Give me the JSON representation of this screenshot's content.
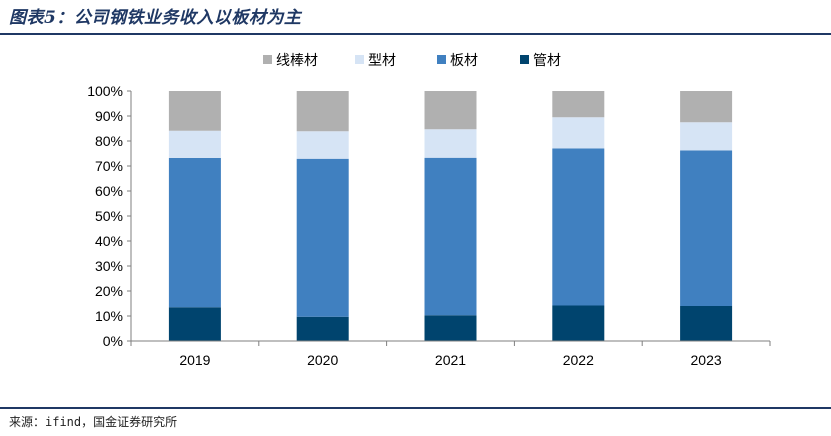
{
  "header": {
    "title": "图表5：公司钢铁业务收入以板材为主"
  },
  "footer": {
    "source": "来源：ifind，国金证券研究所"
  },
  "chart_data": {
    "type": "bar",
    "stacked": true,
    "percent": true,
    "categories": [
      "2019",
      "2020",
      "2021",
      "2022",
      "2023"
    ],
    "series": [
      {
        "name": "管材",
        "color": "#00446e",
        "values": [
          13.5,
          9.7,
          10.3,
          14.2,
          14.0
        ]
      },
      {
        "name": "板材",
        "color": "#4080c0",
        "values": [
          59.7,
          63.2,
          63.0,
          62.8,
          62.2
        ]
      },
      {
        "name": "型材",
        "color": "#d6e4f5",
        "values": [
          10.9,
          11.0,
          11.4,
          12.5,
          11.3
        ]
      },
      {
        "name": "线棒材",
        "color": "#b0b0b0",
        "values": [
          15.9,
          16.1,
          15.3,
          10.5,
          12.5
        ]
      }
    ],
    "legend_order": [
      "线棒材",
      "型材",
      "板材",
      "管材"
    ],
    "legend_position": "top",
    "ylim": [
      0,
      100
    ],
    "yticks": [
      "0%",
      "10%",
      "20%",
      "30%",
      "40%",
      "50%",
      "60%",
      "70%",
      "80%",
      "90%",
      "100%"
    ],
    "grid": false
  }
}
